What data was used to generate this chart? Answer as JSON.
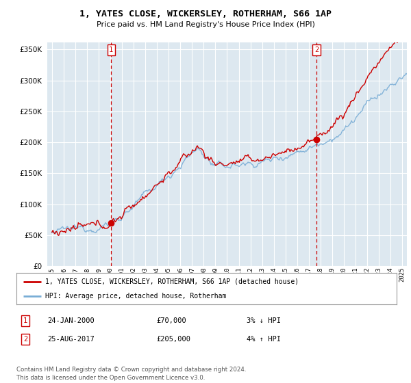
{
  "title": "1, YATES CLOSE, WICKERSLEY, ROTHERHAM, S66 1AP",
  "subtitle": "Price paid vs. HM Land Registry's House Price Index (HPI)",
  "background_color": "#ffffff",
  "plot_bg_color": "#dde8f0",
  "grid_color": "#ffffff",
  "sale1_date": 2000.07,
  "sale1_price": 70000,
  "sale1_label": "1",
  "sale2_date": 2017.65,
  "sale2_price": 205000,
  "sale2_label": "2",
  "legend_line1": "1, YATES CLOSE, WICKERSLEY, ROTHERHAM, S66 1AP (detached house)",
  "legend_line2": "HPI: Average price, detached house, Rotherham",
  "table_row1": [
    "1",
    "24-JAN-2000",
    "£70,000",
    "3% ↓ HPI"
  ],
  "table_row2": [
    "2",
    "25-AUG-2017",
    "£205,000",
    "4% ↑ HPI"
  ],
  "footnote": "Contains HM Land Registry data © Crown copyright and database right 2024.\nThis data is licensed under the Open Government Licence v3.0.",
  "ylim": [
    0,
    362000
  ],
  "xlim_start": 1994.6,
  "xlim_end": 2025.4,
  "hpi_color": "#7aaed6",
  "price_color": "#cc0000",
  "vline_color": "#cc0000",
  "yticks": [
    0,
    50000,
    100000,
    150000,
    200000,
    250000,
    300000,
    350000
  ]
}
